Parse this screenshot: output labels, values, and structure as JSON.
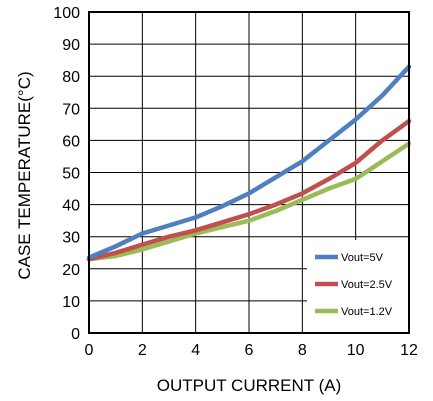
{
  "chart_data": {
    "type": "line",
    "title": "",
    "xlabel": "OUTPUT CURRENT (A)",
    "ylabel": "CASE TEMPERATURE(°C)",
    "xlim": [
      0,
      12
    ],
    "ylim": [
      0,
      100
    ],
    "x_ticks": [
      "0",
      "2",
      "4",
      "6",
      "8",
      "10",
      "12"
    ],
    "y_ticks": [
      "0",
      "10",
      "20",
      "30",
      "40",
      "50",
      "60",
      "70",
      "80",
      "90",
      "100"
    ],
    "grid": true,
    "legend_position": "bottom-right",
    "series": [
      {
        "name": "Vout=5V",
        "color": "#4e7fbf",
        "x": [
          0,
          1,
          2,
          3,
          4,
          5,
          6,
          7,
          8,
          9,
          10,
          11,
          12
        ],
        "y": [
          23.5,
          27,
          31,
          33.5,
          36,
          39.5,
          43.5,
          48.5,
          53.5,
          60,
          66.5,
          74,
          83
        ]
      },
      {
        "name": "Vout=2.5V",
        "color": "#c0504d",
        "x": [
          0,
          1,
          2,
          3,
          4,
          5,
          6,
          7,
          8,
          9,
          10,
          11,
          12
        ],
        "y": [
          23,
          25,
          27.5,
          30,
          32,
          34.5,
          37,
          40,
          43.5,
          48,
          53,
          60,
          66
        ]
      },
      {
        "name": "Vout=1.2V",
        "color": "#9bbb59",
        "x": [
          0,
          1,
          2,
          3,
          4,
          5,
          6,
          7,
          8,
          9,
          10,
          11,
          12
        ],
        "y": [
          23,
          24,
          26,
          28.5,
          31,
          33,
          35,
          38,
          41.5,
          45,
          48,
          53.5,
          59
        ]
      }
    ]
  }
}
